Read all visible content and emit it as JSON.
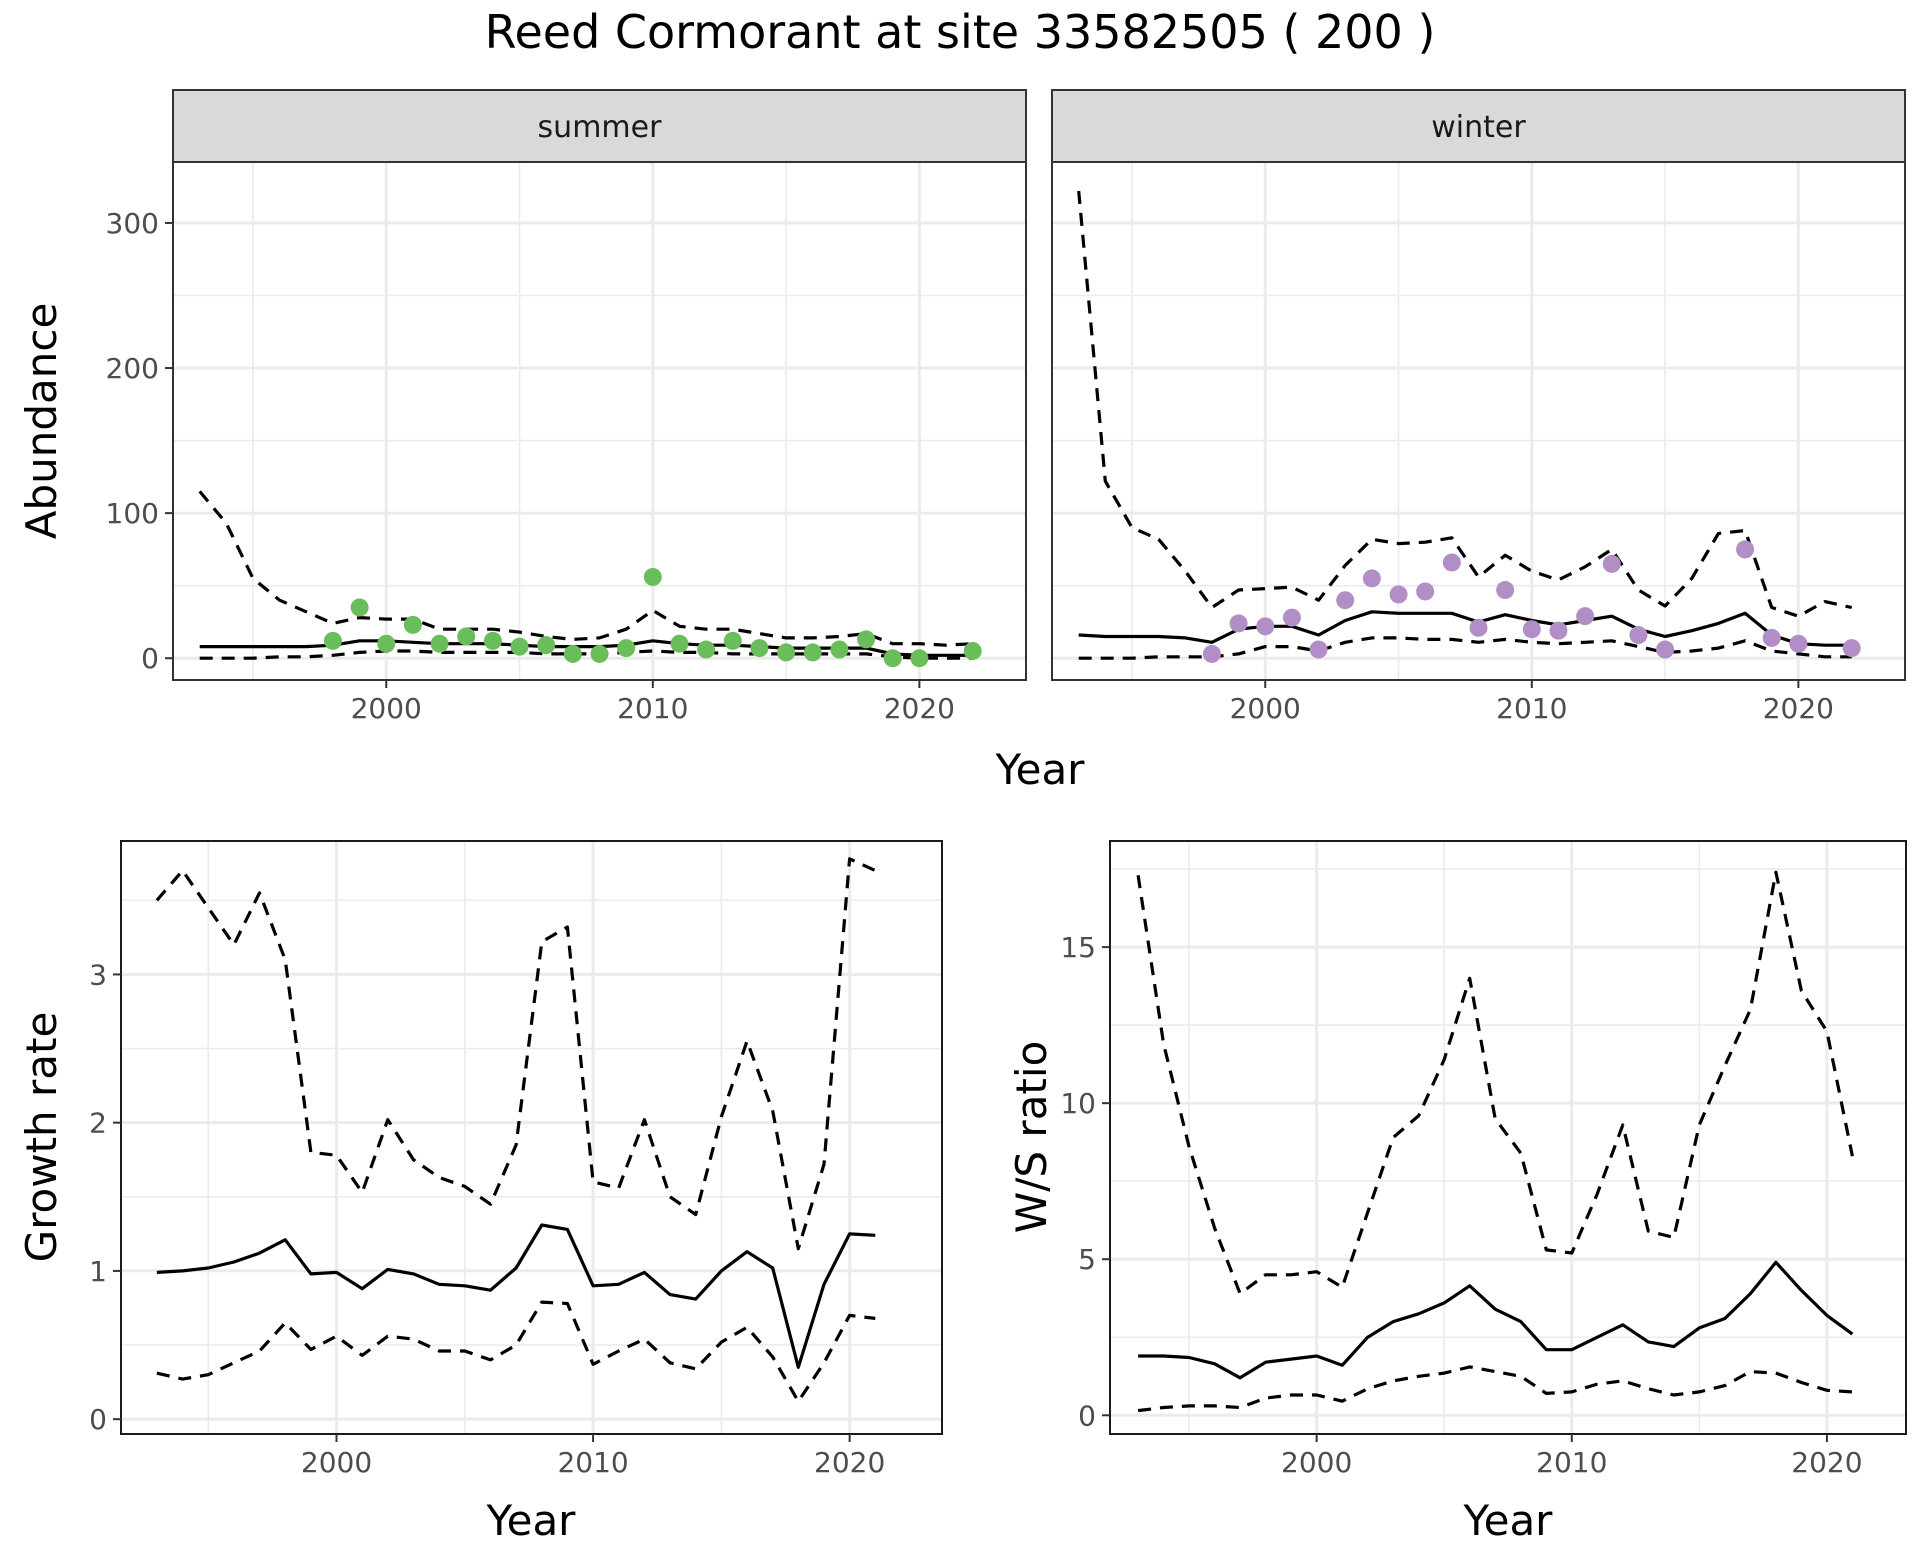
{
  "title": "Reed Cormorant at site 33582505 ( 200 )",
  "colors": {
    "summer_points": "#6abd5a",
    "winter_points": "#b28ec6",
    "line": "#000000",
    "grid": "#ebebeb",
    "strip_bg": "#d9d9d9"
  },
  "chart_data": [
    {
      "type": "line",
      "panel": "summer",
      "strip_label": "summer",
      "xlabel": "Year",
      "ylabel": "Abundance",
      "xlim": [
        1992,
        2024
      ],
      "ylim": [
        -15,
        342
      ],
      "xticks": [
        2000,
        2010,
        2020
      ],
      "yticks": [
        0,
        100,
        200,
        300
      ],
      "grid": true,
      "x": [
        1993,
        1994,
        1995,
        1996,
        1997,
        1998,
        1999,
        2000,
        2001,
        2002,
        2003,
        2004,
        2005,
        2006,
        2007,
        2008,
        2009,
        2010,
        2011,
        2012,
        2013,
        2014,
        2015,
        2016,
        2017,
        2018,
        2019,
        2020,
        2021,
        2022
      ],
      "series": [
        {
          "role": "estimate",
          "style": "solid",
          "values": [
            8,
            8,
            8,
            8,
            8,
            9,
            12,
            12,
            11,
            10,
            10,
            10,
            9,
            8,
            8,
            8,
            9,
            12,
            10,
            9,
            9,
            8,
            7,
            7,
            7,
            7,
            3,
            2,
            2,
            2
          ]
        },
        {
          "role": "upper",
          "style": "dashed",
          "values": [
            115,
            93,
            55,
            40,
            32,
            24,
            28,
            27,
            27,
            20,
            20,
            20,
            18,
            15,
            13,
            14,
            20,
            33,
            22,
            20,
            20,
            17,
            14,
            14,
            15,
            17,
            10,
            10,
            9,
            10
          ]
        },
        {
          "role": "lower",
          "style": "dashed",
          "values": [
            0,
            0,
            0,
            1,
            1,
            2,
            4,
            5,
            5,
            4,
            4,
            4,
            4,
            3,
            3,
            3,
            4,
            5,
            4,
            4,
            3,
            3,
            3,
            3,
            3,
            3,
            1,
            0,
            0,
            0
          ]
        }
      ],
      "points": {
        "x": [
          1998,
          1999,
          2000,
          2001,
          2002,
          2003,
          2004,
          2005,
          2006,
          2007,
          2008,
          2009,
          2010,
          2011,
          2012,
          2013,
          2014,
          2015,
          2016,
          2017,
          2018,
          2019,
          2020,
          2022
        ],
        "y": [
          12,
          35,
          10,
          23,
          10,
          15,
          12,
          8,
          9,
          3,
          3,
          7,
          56,
          10,
          6,
          12,
          7,
          4,
          4,
          6,
          13,
          0,
          0,
          5
        ]
      }
    },
    {
      "type": "line",
      "panel": "winter",
      "strip_label": "winter",
      "xlabel": "Year",
      "ylabel": "Abundance",
      "xlim": [
        1992,
        2024
      ],
      "ylim": [
        -15,
        342
      ],
      "xticks": [
        2000,
        2010,
        2020
      ],
      "yticks": [
        0,
        100,
        200,
        300
      ],
      "grid": true,
      "x": [
        1993,
        1994,
        1995,
        1996,
        1997,
        1998,
        1999,
        2000,
        2001,
        2002,
        2003,
        2004,
        2005,
        2006,
        2007,
        2008,
        2009,
        2010,
        2011,
        2012,
        2013,
        2014,
        2015,
        2016,
        2017,
        2018,
        2019,
        2020,
        2021,
        2022
      ],
      "series": [
        {
          "role": "estimate",
          "style": "solid",
          "values": [
            16,
            15,
            15,
            15,
            14,
            11,
            20,
            22,
            22,
            16,
            26,
            32,
            31,
            31,
            31,
            25,
            30,
            26,
            23,
            26,
            29,
            20,
            15,
            19,
            24,
            31,
            16,
            10,
            9,
            9
          ]
        },
        {
          "role": "upper",
          "style": "dashed",
          "values": [
            322,
            122,
            90,
            82,
            60,
            35,
            47,
            48,
            49,
            40,
            64,
            82,
            79,
            80,
            83,
            56,
            71,
            60,
            54,
            63,
            75,
            47,
            36,
            55,
            86,
            88,
            35,
            29,
            39,
            35
          ]
        },
        {
          "role": "lower",
          "style": "dashed",
          "values": [
            0,
            0,
            0,
            1,
            1,
            1,
            3,
            8,
            8,
            5,
            11,
            14,
            14,
            13,
            13,
            11,
            13,
            11,
            10,
            11,
            12,
            8,
            4,
            5,
            7,
            12,
            5,
            3,
            1,
            1
          ]
        }
      ],
      "points": {
        "x": [
          1998,
          1999,
          2000,
          2001,
          2002,
          2003,
          2004,
          2005,
          2006,
          2007,
          2008,
          2009,
          2010,
          2011,
          2012,
          2013,
          2014,
          2015,
          2018,
          2019,
          2020,
          2022
        ],
        "y": [
          3,
          24,
          22,
          28,
          6,
          40,
          55,
          44,
          46,
          66,
          21,
          47,
          20,
          19,
          29,
          65,
          16,
          6,
          75,
          14,
          10,
          7
        ]
      }
    },
    {
      "type": "line",
      "panel": "growth",
      "xlabel": "Year",
      "ylabel": "Growth rate",
      "xlim": [
        1991.6,
        2023.6
      ],
      "ylim": [
        -0.1,
        3.9
      ],
      "xticks": [
        2000,
        2010,
        2020
      ],
      "yticks": [
        0,
        1,
        2,
        3
      ],
      "grid": true,
      "x": [
        1993,
        1994,
        1995,
        1996,
        1997,
        1998,
        1999,
        2000,
        2001,
        2002,
        2003,
        2004,
        2005,
        2006,
        2007,
        2008,
        2009,
        2010,
        2011,
        2012,
        2013,
        2014,
        2015,
        2016,
        2017,
        2018,
        2019,
        2020,
        2021
      ],
      "series": [
        {
          "role": "estimate",
          "style": "solid",
          "values": [
            0.99,
            1.0,
            1.02,
            1.06,
            1.12,
            1.21,
            0.98,
            0.99,
            0.88,
            1.01,
            0.98,
            0.91,
            0.9,
            0.87,
            1.02,
            1.31,
            1.28,
            0.9,
            0.91,
            0.99,
            0.84,
            0.81,
            1.0,
            1.13,
            1.02,
            0.35,
            0.91,
            1.25,
            1.24
          ]
        },
        {
          "role": "upper",
          "style": "dashed",
          "values": [
            3.5,
            3.7,
            3.45,
            3.2,
            3.55,
            3.1,
            1.8,
            1.78,
            1.53,
            2.02,
            1.75,
            1.63,
            1.57,
            1.45,
            1.85,
            3.22,
            3.32,
            1.6,
            1.56,
            2.02,
            1.5,
            1.38,
            2.04,
            2.55,
            2.08,
            1.15,
            1.72,
            3.78,
            3.7
          ]
        },
        {
          "role": "lower",
          "style": "dashed",
          "values": [
            0.31,
            0.27,
            0.3,
            0.38,
            0.46,
            0.65,
            0.47,
            0.56,
            0.43,
            0.56,
            0.54,
            0.46,
            0.46,
            0.4,
            0.5,
            0.79,
            0.78,
            0.37,
            0.46,
            0.54,
            0.38,
            0.34,
            0.52,
            0.62,
            0.42,
            0.12,
            0.38,
            0.7,
            0.68
          ]
        }
      ]
    },
    {
      "type": "line",
      "panel": "ratio",
      "xlabel": "Year",
      "ylabel": "W/S ratio",
      "xlim": [
        1991.9,
        2023.1
      ],
      "ylim": [
        -0.6,
        18.4
      ],
      "xticks": [
        2000,
        2010,
        2020
      ],
      "yticks": [
        0,
        5,
        10,
        15
      ],
      "grid": true,
      "x": [
        1993,
        1994,
        1995,
        1996,
        1997,
        1998,
        1999,
        2000,
        2001,
        2002,
        2003,
        2004,
        2005,
        2006,
        2007,
        2008,
        2009,
        2010,
        2011,
        2012,
        2013,
        2014,
        2015,
        2016,
        2017,
        2018,
        2019,
        2020,
        2021
      ],
      "series": [
        {
          "role": "estimate",
          "style": "solid",
          "values": [
            1.9,
            1.9,
            1.85,
            1.65,
            1.2,
            1.7,
            1.8,
            1.9,
            1.6,
            2.5,
            3.0,
            3.25,
            3.6,
            4.15,
            3.4,
            3.0,
            2.1,
            2.1,
            2.5,
            2.9,
            2.35,
            2.2,
            2.8,
            3.1,
            3.9,
            4.9,
            4.0,
            3.2,
            2.6
          ]
        },
        {
          "role": "upper",
          "style": "dashed",
          "values": [
            17.3,
            11.9,
            8.6,
            6.0,
            3.9,
            4.5,
            4.5,
            4.6,
            4.1,
            6.5,
            8.9,
            9.6,
            11.4,
            14.0,
            9.5,
            8.4,
            5.3,
            5.2,
            7.1,
            9.3,
            5.9,
            5.7,
            9.3,
            11.2,
            13.0,
            17.4,
            13.6,
            12.3,
            8.3
          ]
        },
        {
          "role": "lower",
          "style": "dashed",
          "values": [
            0.15,
            0.25,
            0.3,
            0.3,
            0.25,
            0.55,
            0.65,
            0.65,
            0.45,
            0.85,
            1.1,
            1.25,
            1.35,
            1.55,
            1.4,
            1.25,
            0.7,
            0.75,
            1.0,
            1.1,
            0.85,
            0.65,
            0.75,
            0.95,
            1.4,
            1.35,
            1.05,
            0.8,
            0.75
          ]
        }
      ]
    }
  ]
}
